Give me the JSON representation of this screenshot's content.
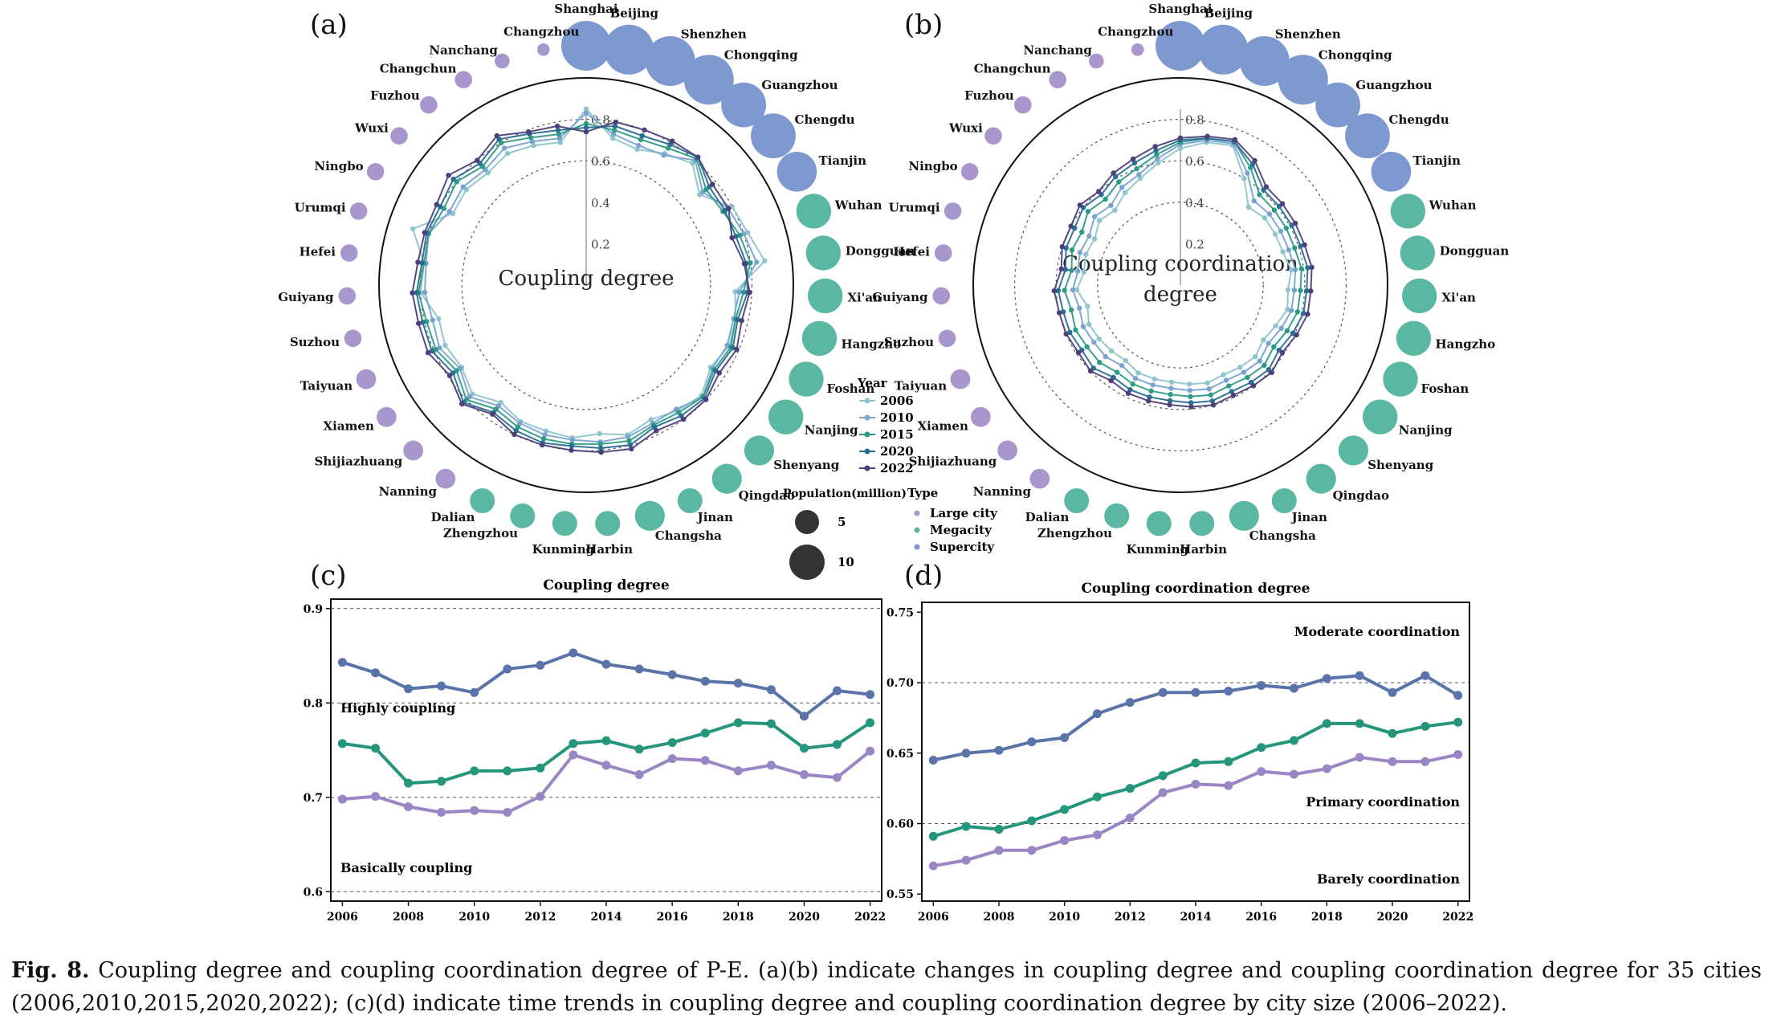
{
  "colors": {
    "y2006": "#8ec5cd",
    "y2010": "#7aa3d0",
    "y2015": "#2e9c85",
    "y2020": "#2b6e93",
    "y2022": "#4e3f7a",
    "large": "#a897cc",
    "mega": "#5ab8a2",
    "super": "#7d99cf",
    "highly": "#5a74a9",
    "basic": "#25957b",
    "purple": "#9a86c4"
  },
  "caption": {
    "label": "Fig. 8.",
    "text": "Coupling degree and coupling coordination degree of P-E. (a)(b) indicate changes in coupling degree and coupling coordination degree for 35 cities (2006,2010,2015,2020,2022); (c)(d) indicate time trends in coupling degree and coupling coordination degree by city size (2006–2022)."
  },
  "legend": {
    "year_title": "Year",
    "years": [
      "2006",
      "2010",
      "2015",
      "2020",
      "2022"
    ],
    "pop_title": "Population(million)",
    "pop_values": [
      "5",
      "10"
    ],
    "type_title": "Type",
    "types": [
      "Large city",
      "Megacity",
      "Supercity"
    ]
  },
  "chart_data": [
    {
      "panel": "(a)",
      "type": "radar",
      "center_label": "Coupling degree",
      "rlim": [
        0,
        1.0
      ],
      "rings": [
        0.6,
        0.8
      ],
      "ring_labels": [
        "0.2",
        "0.4",
        "0.6",
        "0.8"
      ],
      "cities": [
        "Shanghai",
        "Beijing",
        "Shenzhen",
        "Chongqing",
        "Guangzhou",
        "Chengdu",
        "Tianjin",
        "Wuhan",
        "Dongguan",
        "Xi'an",
        "Hangzho",
        "Foshan",
        "Nanjing",
        "Shenyang",
        "Qingdao",
        "Jinan",
        "Changsha",
        "Harbin",
        "Kunming",
        "Zhengzhou",
        "Dalian",
        "Nanning",
        "Shijiazhuang",
        "Xiamen",
        "Taiyuan",
        "Suzhou",
        "Guiyang",
        "Hefei",
        "Urumqi",
        "Ningbo",
        "Wuxi",
        "Fuzhou",
        "Changchun",
        "Nanchang",
        "Changzhou"
      ],
      "city_type": [
        "super",
        "super",
        "super",
        "super",
        "super",
        "super",
        "super",
        "mega",
        "mega",
        "mega",
        "mega",
        "mega",
        "mega",
        "mega",
        "mega",
        "mega",
        "mega",
        "mega",
        "mega",
        "mega",
        "mega",
        "large",
        "large",
        "large",
        "large",
        "large",
        "large",
        "large",
        "large",
        "large",
        "large",
        "large",
        "large",
        "large",
        "large"
      ],
      "population_million": [
        10,
        10,
        10,
        10,
        9,
        9,
        8,
        7,
        7,
        7,
        7,
        7,
        7,
        6,
        6,
        5,
        6,
        5,
        5,
        5,
        5,
        4,
        4,
        4,
        4,
        3.5,
        3.5,
        3.5,
        3.5,
        3.5,
        3.5,
        3.5,
        3.5,
        3,
        2.5
      ],
      "series": [
        {
          "name": "2006",
          "values": [
            0.85,
            0.72,
            0.7,
            0.74,
            0.78,
            0.7,
            0.8,
            0.82,
            0.87,
            0.72,
            0.74,
            0.75,
            0.72,
            0.77,
            0.75,
            0.72,
            0.75,
            0.72,
            0.74,
            0.73,
            0.73,
            0.7,
            0.76,
            0.72,
            0.74,
            0.73,
            0.8,
            0.79,
            0.88,
            0.73,
            0.74,
            0.72,
            0.74,
            0.72,
            0.7
          ]
        },
        {
          "name": "2010",
          "values": [
            0.83,
            0.74,
            0.72,
            0.73,
            0.8,
            0.72,
            0.78,
            0.8,
            0.83,
            0.74,
            0.73,
            0.74,
            0.73,
            0.78,
            0.74,
            0.74,
            0.76,
            0.76,
            0.75,
            0.75,
            0.74,
            0.72,
            0.78,
            0.73,
            0.77,
            0.76,
            0.78,
            0.78,
            0.8,
            0.75,
            0.76,
            0.74,
            0.77,
            0.74,
            0.72
          ]
        },
        {
          "name": "2015",
          "values": [
            0.78,
            0.76,
            0.75,
            0.77,
            0.81,
            0.74,
            0.75,
            0.78,
            0.8,
            0.76,
            0.74,
            0.76,
            0.74,
            0.78,
            0.76,
            0.75,
            0.78,
            0.77,
            0.77,
            0.77,
            0.76,
            0.74,
            0.8,
            0.75,
            0.79,
            0.79,
            0.81,
            0.79,
            0.8,
            0.78,
            0.8,
            0.76,
            0.8,
            0.76,
            0.74
          ]
        },
        {
          "name": "2020",
          "values": [
            0.76,
            0.78,
            0.77,
            0.79,
            0.82,
            0.76,
            0.76,
            0.76,
            0.78,
            0.78,
            0.75,
            0.77,
            0.75,
            0.79,
            0.78,
            0.76,
            0.8,
            0.79,
            0.78,
            0.79,
            0.78,
            0.76,
            0.82,
            0.77,
            0.81,
            0.81,
            0.82,
            0.8,
            0.81,
            0.8,
            0.82,
            0.78,
            0.82,
            0.78,
            0.76
          ]
        },
        {
          "name": "2022",
          "values": [
            0.74,
            0.8,
            0.8,
            0.81,
            0.82,
            0.78,
            0.78,
            0.74,
            0.77,
            0.79,
            0.77,
            0.79,
            0.77,
            0.8,
            0.8,
            0.78,
            0.82,
            0.81,
            0.8,
            0.8,
            0.8,
            0.77,
            0.83,
            0.79,
            0.83,
            0.83,
            0.84,
            0.82,
            0.82,
            0.82,
            0.85,
            0.8,
            0.84,
            0.79,
            0.78
          ]
        }
      ]
    },
    {
      "panel": "(b)",
      "type": "radar",
      "center_label": [
        "Coupling coordination",
        "degree"
      ],
      "rlim": [
        0,
        1.0
      ],
      "rings": [
        0.4,
        0.6,
        0.8
      ],
      "ring_labels": [
        "0.2",
        "0.4",
        "0.6",
        "0.8"
      ],
      "cities": [
        "Shanghai",
        "Beijing",
        "Shenzhen",
        "Chongqing",
        "Guangzhou",
        "Chengdu",
        "Tianjin",
        "Wuhan",
        "Dongguan",
        "Xi'an",
        "Hangzho",
        "Foshan",
        "Nanjing",
        "Shenyang",
        "Qingdao",
        "Jinan",
        "Changsha",
        "Harbin",
        "Kunming",
        "Zhengzhou",
        "Dalian",
        "Nanning",
        "Shijiazhuang",
        "Xiamen",
        "Taiyuan",
        "Suzhou",
        "Guiyang",
        "Hefei",
        "Urumqi",
        "Ningbo",
        "Wuxi",
        "Fuzhou",
        "Changchun",
        "Nanchang",
        "Changzhou"
      ],
      "city_type": [
        "super",
        "super",
        "super",
        "super",
        "super",
        "super",
        "super",
        "mega",
        "mega",
        "mega",
        "mega",
        "mega",
        "mega",
        "mega",
        "mega",
        "mega",
        "mega",
        "mega",
        "mega",
        "mega",
        "mega",
        "large",
        "large",
        "large",
        "large",
        "large",
        "large",
        "large",
        "large",
        "large",
        "large",
        "large",
        "large",
        "large",
        "large"
      ],
      "population_million": [
        10,
        10,
        10,
        10,
        9,
        9,
        8,
        7,
        7,
        7,
        7,
        7,
        7,
        6,
        6,
        5,
        6,
        5,
        5,
        5,
        5,
        4,
        4,
        4,
        4,
        3.5,
        3.5,
        3.5,
        3.5,
        3.5,
        3.5,
        3.5,
        3.5,
        3,
        2.5
      ],
      "series": [
        {
          "name": "2006",
          "values": [
            0.66,
            0.7,
            0.72,
            0.6,
            0.5,
            0.52,
            0.52,
            0.52,
            0.54,
            0.52,
            0.53,
            0.5,
            0.48,
            0.5,
            0.49,
            0.48,
            0.49,
            0.48,
            0.47,
            0.47,
            0.47,
            0.45,
            0.46,
            0.47,
            0.48,
            0.46,
            0.5,
            0.47,
            0.48,
            0.47,
            0.5,
            0.48,
            0.52,
            0.55,
            0.6
          ]
        },
        {
          "name": "2010",
          "values": [
            0.68,
            0.71,
            0.73,
            0.63,
            0.54,
            0.55,
            0.55,
            0.55,
            0.56,
            0.55,
            0.55,
            0.53,
            0.51,
            0.53,
            0.52,
            0.51,
            0.52,
            0.51,
            0.5,
            0.5,
            0.5,
            0.48,
            0.5,
            0.5,
            0.51,
            0.5,
            0.52,
            0.5,
            0.51,
            0.5,
            0.53,
            0.51,
            0.55,
            0.57,
            0.62
          ]
        },
        {
          "name": "2015",
          "values": [
            0.69,
            0.72,
            0.74,
            0.66,
            0.58,
            0.58,
            0.58,
            0.58,
            0.59,
            0.58,
            0.58,
            0.56,
            0.54,
            0.56,
            0.55,
            0.54,
            0.55,
            0.54,
            0.53,
            0.53,
            0.53,
            0.52,
            0.54,
            0.54,
            0.55,
            0.54,
            0.56,
            0.53,
            0.55,
            0.54,
            0.57,
            0.55,
            0.58,
            0.6,
            0.64
          ]
        },
        {
          "name": "2020",
          "values": [
            0.7,
            0.72,
            0.74,
            0.68,
            0.61,
            0.61,
            0.61,
            0.61,
            0.62,
            0.61,
            0.61,
            0.59,
            0.57,
            0.59,
            0.58,
            0.57,
            0.58,
            0.57,
            0.56,
            0.56,
            0.56,
            0.55,
            0.58,
            0.57,
            0.58,
            0.58,
            0.59,
            0.56,
            0.58,
            0.58,
            0.6,
            0.58,
            0.61,
            0.63,
            0.66
          ]
        },
        {
          "name": "2022",
          "values": [
            0.71,
            0.73,
            0.75,
            0.7,
            0.63,
            0.63,
            0.63,
            0.63,
            0.64,
            0.63,
            0.63,
            0.61,
            0.59,
            0.61,
            0.6,
            0.59,
            0.6,
            0.59,
            0.58,
            0.58,
            0.58,
            0.57,
            0.6,
            0.59,
            0.6,
            0.6,
            0.61,
            0.58,
            0.6,
            0.6,
            0.62,
            0.6,
            0.63,
            0.65,
            0.68
          ]
        }
      ]
    },
    {
      "panel": "(c)",
      "type": "line",
      "title": "Coupling degree",
      "x": [
        2006,
        2007,
        2008,
        2009,
        2010,
        2011,
        2012,
        2013,
        2014,
        2015,
        2016,
        2017,
        2018,
        2019,
        2020,
        2021,
        2022
      ],
      "xticks": [
        2006,
        2008,
        2010,
        2012,
        2014,
        2016,
        2018,
        2020,
        2022
      ],
      "ylim": [
        0.59,
        0.91
      ],
      "yticks": [
        0.6,
        0.7,
        0.8,
        0.9
      ],
      "ytick_labels": [
        "0.6",
        "0.7",
        "0.8",
        "0.9"
      ],
      "hlines": [
        0.6,
        0.7,
        0.8,
        0.9
      ],
      "annotations": [
        "Highly coupling",
        "Basically coupling"
      ],
      "series": [
        {
          "color": "highly",
          "values": [
            0.843,
            0.832,
            0.815,
            0.818,
            0.811,
            0.836,
            0.84,
            0.853,
            0.841,
            0.836,
            0.83,
            0.823,
            0.821,
            0.814,
            0.786,
            0.813,
            0.809
          ]
        },
        {
          "color": "basic",
          "values": [
            0.757,
            0.752,
            0.715,
            0.717,
            0.728,
            0.728,
            0.731,
            0.757,
            0.76,
            0.751,
            0.758,
            0.768,
            0.779,
            0.778,
            0.752,
            0.756,
            0.779
          ]
        },
        {
          "color": "purple",
          "values": [
            0.698,
            0.701,
            0.69,
            0.684,
            0.686,
            0.684,
            0.701,
            0.745,
            0.734,
            0.724,
            0.741,
            0.739,
            0.728,
            0.734,
            0.724,
            0.721,
            0.749
          ]
        }
      ]
    },
    {
      "panel": "(d)",
      "type": "line",
      "title": "Coupling coordination degree",
      "x": [
        2006,
        2007,
        2008,
        2009,
        2010,
        2011,
        2012,
        2013,
        2014,
        2015,
        2016,
        2017,
        2018,
        2019,
        2020,
        2021,
        2022
      ],
      "xticks": [
        2006,
        2008,
        2010,
        2012,
        2014,
        2016,
        2018,
        2020,
        2022
      ],
      "ylim": [
        0.545,
        0.757
      ],
      "yticks": [
        0.55,
        0.6,
        0.65,
        0.7,
        0.75
      ],
      "ytick_labels": [
        "0.55",
        "0.60",
        "0.65",
        "0.70",
        "0.75"
      ],
      "hlines": [
        0.6,
        0.7
      ],
      "annotations": [
        "Moderate coordination",
        "Primary coordination",
        "Barely coordination"
      ],
      "series": [
        {
          "color": "highly",
          "values": [
            0.645,
            0.65,
            0.652,
            0.658,
            0.661,
            0.678,
            0.686,
            0.693,
            0.693,
            0.694,
            0.698,
            0.696,
            0.703,
            0.705,
            0.693,
            0.705,
            0.691
          ]
        },
        {
          "color": "basic",
          "values": [
            0.591,
            0.598,
            0.596,
            0.602,
            0.61,
            0.619,
            0.625,
            0.634,
            0.643,
            0.644,
            0.654,
            0.659,
            0.671,
            0.671,
            0.664,
            0.669,
            0.672
          ]
        },
        {
          "color": "purple",
          "values": [
            0.57,
            0.574,
            0.581,
            0.581,
            0.588,
            0.592,
            0.604,
            0.622,
            0.628,
            0.627,
            0.637,
            0.635,
            0.639,
            0.647,
            0.644,
            0.644,
            0.649
          ]
        }
      ]
    }
  ]
}
